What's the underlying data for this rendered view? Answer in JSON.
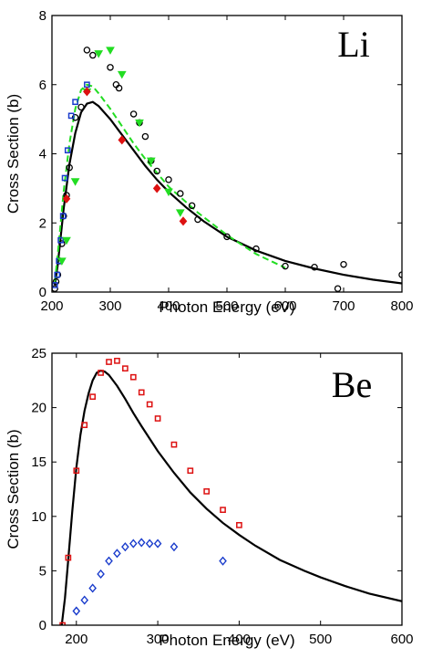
{
  "chart_data": [
    {
      "type": "scatter",
      "panel_label": "Li",
      "xlabel": "Photon Energy (eV)",
      "ylabel": "Cross Section (b)",
      "xlim": [
        200,
        800
      ],
      "ylim": [
        0,
        8
      ],
      "xticks": [
        200,
        300,
        400,
        500,
        600,
        700,
        800
      ],
      "yticks": [
        0,
        2,
        4,
        6,
        8
      ],
      "grid": false,
      "lines": [
        {
          "style": "solid",
          "color": "#000000",
          "x": [
            205,
            210,
            215,
            220,
            230,
            240,
            250,
            260,
            270,
            280,
            300,
            320,
            340,
            360,
            380,
            400,
            430,
            460,
            500,
            550,
            600,
            650,
            700,
            750,
            800
          ],
          "y": [
            0.2,
            0.8,
            1.6,
            2.4,
            3.7,
            4.6,
            5.2,
            5.45,
            5.5,
            5.38,
            5.0,
            4.55,
            4.1,
            3.65,
            3.25,
            2.9,
            2.45,
            2.05,
            1.6,
            1.2,
            0.9,
            0.68,
            0.5,
            0.36,
            0.25
          ]
        },
        {
          "style": "dashed",
          "color": "#22dd22",
          "x": [
            205,
            210,
            215,
            220,
            230,
            240,
            250,
            260,
            270,
            280,
            300,
            320,
            340,
            360,
            380,
            400,
            450,
            500,
            550,
            600
          ],
          "y": [
            0.3,
            1.1,
            2.0,
            2.9,
            4.3,
            5.3,
            5.85,
            6.0,
            5.95,
            5.75,
            5.3,
            4.8,
            4.3,
            3.85,
            3.45,
            3.05,
            2.3,
            1.65,
            1.1,
            0.7
          ]
        }
      ],
      "series": [
        {
          "marker": "circle",
          "color": "#000000",
          "x": [
            205,
            207,
            210,
            213,
            217,
            220,
            225,
            230,
            240,
            250,
            260,
            270,
            300,
            310,
            315,
            340,
            350,
            360,
            370,
            380,
            400,
            420,
            440,
            450,
            500,
            550,
            600,
            650,
            690,
            700,
            800
          ],
          "y": [
            0.1,
            0.3,
            0.5,
            0.9,
            1.4,
            2.2,
            2.8,
            3.6,
            5.05,
            5.35,
            7.0,
            6.85,
            6.5,
            6.0,
            5.9,
            5.15,
            4.9,
            4.5,
            3.8,
            3.5,
            3.25,
            2.85,
            2.5,
            2.1,
            1.6,
            1.25,
            0.75,
            0.72,
            0.1,
            0.8,
            0.5
          ]
        },
        {
          "marker": "square",
          "color": "#1a3ccc",
          "x": [
            205,
            209,
            212,
            215,
            219,
            222,
            227,
            233,
            240,
            260
          ],
          "y": [
            0.2,
            0.5,
            0.9,
            1.5,
            2.2,
            3.3,
            4.1,
            5.1,
            5.5,
            6.0
          ]
        },
        {
          "marker": "triangle-down",
          "color": "#22dd22",
          "x": [
            217,
            225,
            240,
            260,
            280,
            300,
            320,
            350,
            370,
            400,
            420
          ],
          "y": [
            0.9,
            1.5,
            3.2,
            5.8,
            6.9,
            7.0,
            6.3,
            4.9,
            3.8,
            2.9,
            2.3
          ]
        },
        {
          "marker": "diamond",
          "color": "#dd1111",
          "x": [
            225,
            260,
            320,
            380,
            425
          ],
          "y": [
            2.7,
            5.8,
            4.4,
            3.0,
            2.05
          ]
        }
      ]
    },
    {
      "type": "scatter",
      "panel_label": "Be",
      "xlabel": "Photon Energy (eV)",
      "ylabel": "Cross Section (b)",
      "xlim": [
        170,
        600
      ],
      "ylim": [
        0,
        25
      ],
      "xticks": [
        200,
        300,
        400,
        500,
        600
      ],
      "yticks": [
        0,
        5,
        10,
        15,
        20,
        25
      ],
      "grid": false,
      "lines": [
        {
          "style": "solid",
          "color": "#000000",
          "x": [
            182,
            186,
            190,
            195,
            200,
            205,
            210,
            215,
            220,
            225,
            230,
            235,
            240,
            250,
            260,
            270,
            280,
            300,
            320,
            340,
            360,
            380,
            400,
            420,
            450,
            480,
            500,
            530,
            560,
            600
          ],
          "y": [
            0,
            2.5,
            6.0,
            10.5,
            14.5,
            17.5,
            19.7,
            21.3,
            22.5,
            23.2,
            23.4,
            23.3,
            23.0,
            22.0,
            20.8,
            19.5,
            18.3,
            16.0,
            14.0,
            12.2,
            10.7,
            9.4,
            8.3,
            7.3,
            6.0,
            5.0,
            4.4,
            3.6,
            2.9,
            2.2
          ]
        }
      ],
      "series": [
        {
          "marker": "square",
          "color": "#dd1111",
          "x": [
            183,
            190,
            200,
            210,
            220,
            230,
            240,
            250,
            260,
            270,
            280,
            290,
            300,
            320,
            340,
            360,
            380,
            400
          ],
          "y": [
            0,
            6.2,
            14.2,
            18.4,
            21.0,
            23.2,
            24.2,
            24.3,
            23.6,
            22.8,
            21.4,
            20.3,
            19.0,
            16.6,
            14.2,
            12.3,
            10.6,
            9.2
          ]
        },
        {
          "marker": "diamond",
          "color": "#1a3ccc",
          "x": [
            200,
            210,
            220,
            230,
            240,
            250,
            260,
            270,
            280,
            290,
            300,
            320,
            380
          ],
          "y": [
            1.3,
            2.3,
            3.4,
            4.7,
            5.9,
            6.6,
            7.2,
            7.5,
            7.6,
            7.5,
            7.5,
            7.2,
            5.9
          ]
        }
      ]
    }
  ]
}
